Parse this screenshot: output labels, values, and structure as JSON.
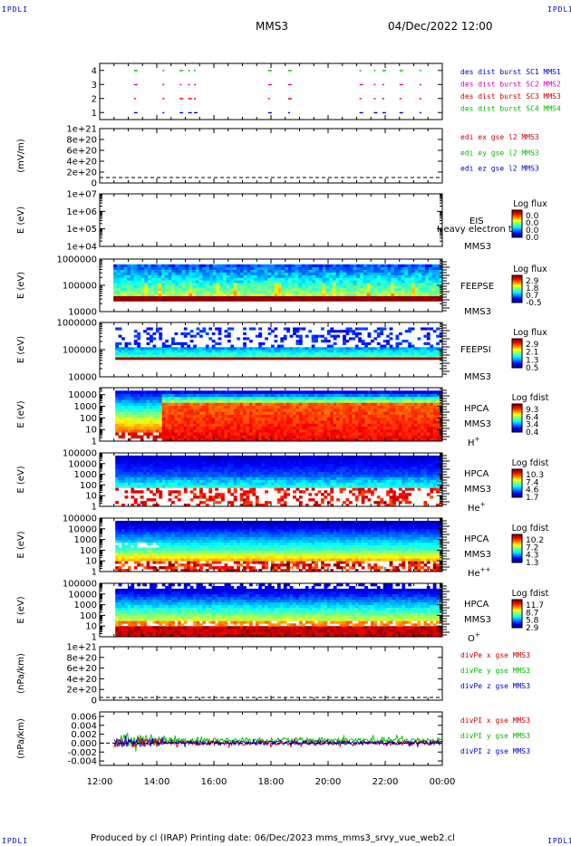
{
  "header": {
    "corner_tag": "IPDLI",
    "spacecraft": "MMS3",
    "datetime": "04/Dec/2022 12:00"
  },
  "footer": {
    "credit": "Produced by cl (IRAP)   Printing date: 06/Dec/2023   mms_mms3_srvy_vue_web2.cl",
    "corner_tag": "IPDLI"
  },
  "colors": {
    "mms1": "#0000cc",
    "mms2": "#cc00cc",
    "mms3": "#cc0000",
    "mms4": "#00bb00",
    "x": "#cc0000",
    "y": "#00bb00",
    "z": "#0000cc"
  },
  "chart_data": [
    {
      "id": "burst",
      "type": "scatter",
      "y_ticks": [
        "1",
        "2",
        "3",
        "4"
      ],
      "ylim": [
        0.5,
        4.5
      ],
      "series": [
        {
          "name": "des dist burst SC1 MMS1",
          "y": 1
        },
        {
          "name": "des dist burst SC2 MMS2",
          "y": 3
        },
        {
          "name": "des dist burst SC3 MMS3",
          "y": 2
        },
        {
          "name": "des dist burst SC4 MMS4",
          "y": 4
        }
      ]
    },
    {
      "id": "edi",
      "type": "line",
      "ylabel": "(mV/m)",
      "y_ticks": [
        "0",
        "2e+20",
        "4e+20",
        "6e+20",
        "8e+20",
        "1e+21"
      ],
      "ylim": [
        0,
        1e+21
      ],
      "series": [
        {
          "name": "edi ex gse l2 MMS3"
        },
        {
          "name": "edi ey gse l2 MMS3"
        },
        {
          "name": "edi ez gse l2 MMS3"
        }
      ]
    },
    {
      "id": "eis",
      "type": "heatmap",
      "ylabel": "E (eV)",
      "y_ticks": [
        "1e+04",
        "1e+05",
        "1e+06",
        "1e+07"
      ],
      "scale": "log",
      "ylim": [
        10000,
        10000000
      ],
      "instrument": "EIS",
      "spacecraft": "MMS3",
      "overlay_text": "Heavy electron to",
      "colorbar": {
        "title": "Log flux",
        "ticks": [
          "0.0",
          "0.0",
          "0.0",
          "0.0"
        ]
      }
    },
    {
      "id": "feepse",
      "type": "heatmap",
      "ylabel": "E (eV)",
      "y_ticks": [
        "10000",
        "100000",
        "1000000"
      ],
      "scale": "log",
      "ylim": [
        10000,
        1000000
      ],
      "instrument": "FEEPSE",
      "spacecraft": "MMS3",
      "colorbar": {
        "title": "Log flux",
        "ticks": [
          "2.9",
          "1.8",
          "0.7",
          "-0.5"
        ]
      }
    },
    {
      "id": "feepsi",
      "type": "heatmap",
      "ylabel": "E (eV)",
      "y_ticks": [
        "10000",
        "100000",
        "1000000"
      ],
      "scale": "log",
      "ylim": [
        10000,
        1000000
      ],
      "instrument": "FEEPSI",
      "spacecraft": "MMS3",
      "colorbar": {
        "title": "Log flux",
        "ticks": [
          "2.9",
          "2.1",
          "1.3",
          "0.5"
        ]
      }
    },
    {
      "id": "hpca_h",
      "type": "heatmap",
      "ylabel": "E (eV)",
      "y_ticks": [
        "1",
        "10",
        "100",
        "1000",
        "10000"
      ],
      "scale": "log",
      "ylim": [
        1,
        40000
      ],
      "instrument": "HPCA",
      "spacecraft": "MMS3",
      "species": "H",
      "charge": "+",
      "colorbar": {
        "title": "Log fdist",
        "ticks": [
          "9.3",
          "6.4",
          "3.4",
          "0.4"
        ]
      }
    },
    {
      "id": "hpca_he1",
      "type": "heatmap",
      "ylabel": "E (eV)",
      "y_ticks": [
        "1",
        "10",
        "100",
        "1000",
        "10000",
        "100000"
      ],
      "scale": "log",
      "ylim": [
        1,
        100000
      ],
      "instrument": "HPCA",
      "spacecraft": "MMS3",
      "species": "He",
      "charge": "+",
      "colorbar": {
        "title": "Log fdist",
        "ticks": [
          "10.3",
          "7.4",
          "4.6",
          "1.7"
        ]
      }
    },
    {
      "id": "hpca_he2",
      "type": "heatmap",
      "ylabel": "E (eV)",
      "y_ticks": [
        "1",
        "10",
        "100",
        "1000",
        "10000",
        "100000"
      ],
      "scale": "log",
      "ylim": [
        1,
        100000
      ],
      "instrument": "HPCA",
      "spacecraft": "MMS3",
      "species": "He",
      "charge": "++",
      "colorbar": {
        "title": "Log fdist",
        "ticks": [
          "10.2",
          "7.2",
          "4.3",
          "1.3"
        ]
      }
    },
    {
      "id": "hpca_o",
      "type": "heatmap",
      "ylabel": "E (eV)",
      "y_ticks": [
        "1",
        "10",
        "100",
        "1000",
        "10000",
        "100000"
      ],
      "scale": "log",
      "ylim": [
        1,
        100000
      ],
      "instrument": "HPCA",
      "spacecraft": "MMS3",
      "species": "O",
      "charge": "+",
      "colorbar": {
        "title": "Log fdist",
        "ticks": [
          "11.7",
          "8.7",
          "5.8",
          "2.9"
        ]
      }
    },
    {
      "id": "divpe",
      "type": "line",
      "ylabel": "(nPa/km)",
      "y_ticks": [
        "0",
        "2e+20",
        "4e+20",
        "6e+20",
        "8e+20",
        "1e+21"
      ],
      "ylim": [
        0,
        1e+21
      ],
      "series": [
        {
          "name": "divPe x gse MMS3"
        },
        {
          "name": "divPe y gse MMS3"
        },
        {
          "name": "divPe z gse MMS3"
        }
      ]
    },
    {
      "id": "divpi",
      "type": "line",
      "ylabel": "(nPa/km)",
      "y_ticks": [
        "-0.004",
        "-0.002",
        "0.000",
        "0.002",
        "0.004",
        "0.006"
      ],
      "ylim": [
        -0.005,
        0.007
      ],
      "series": [
        {
          "name": "divPI x gse MMS3"
        },
        {
          "name": "divPI y gse MMS3"
        },
        {
          "name": "divPI z gse MMS3"
        }
      ]
    }
  ],
  "x_axis": {
    "tick_labels": [
      "12:00",
      "14:00",
      "16:00",
      "18:00",
      "20:00",
      "22:00",
      "00:00"
    ],
    "xlim_hours": [
      12,
      24
    ]
  }
}
